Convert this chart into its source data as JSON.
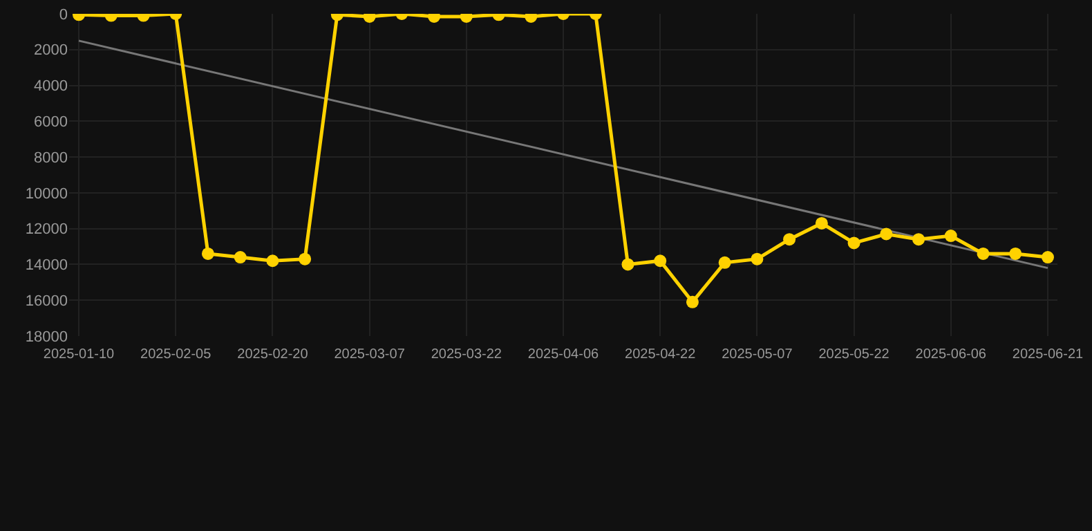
{
  "chart_data": {
    "type": "line",
    "categories": [
      "2025-01-10",
      null,
      null,
      "2025-02-05",
      null,
      null,
      "2025-02-20",
      null,
      null,
      "2025-03-07",
      null,
      null,
      "2025-03-22",
      null,
      null,
      "2025-04-06",
      null,
      null,
      "2025-04-22",
      null,
      null,
      "2025-05-07",
      null,
      null,
      "2025-05-22",
      null,
      null,
      "2025-06-06",
      null,
      null,
      "2025-06-21"
    ],
    "series": [
      {
        "color": "#ffd200",
        "marker": "circle",
        "values": [
          50,
          100,
          100,
          0,
          13400,
          13600,
          13800,
          13700,
          50,
          150,
          0,
          150,
          150,
          50,
          150,
          0,
          0,
          14000,
          13800,
          16100,
          13900,
          13700,
          12600,
          11700,
          12800,
          12300,
          12600,
          12400,
          13400,
          13400,
          13600
        ]
      },
      {
        "color": "#777777",
        "marker": "none",
        "values": [
          1500,
          null,
          null,
          null,
          null,
          null,
          null,
          null,
          null,
          null,
          null,
          null,
          null,
          null,
          null,
          null,
          null,
          null,
          null,
          null,
          null,
          null,
          null,
          null,
          null,
          null,
          null,
          null,
          null,
          null,
          14200
        ]
      }
    ],
    "ylim": [
      18000,
      0
    ],
    "yticks": [
      0,
      2000,
      4000,
      6000,
      8000,
      10000,
      12000,
      14000,
      16000,
      18000
    ],
    "grid": true,
    "line_style": "solid"
  }
}
